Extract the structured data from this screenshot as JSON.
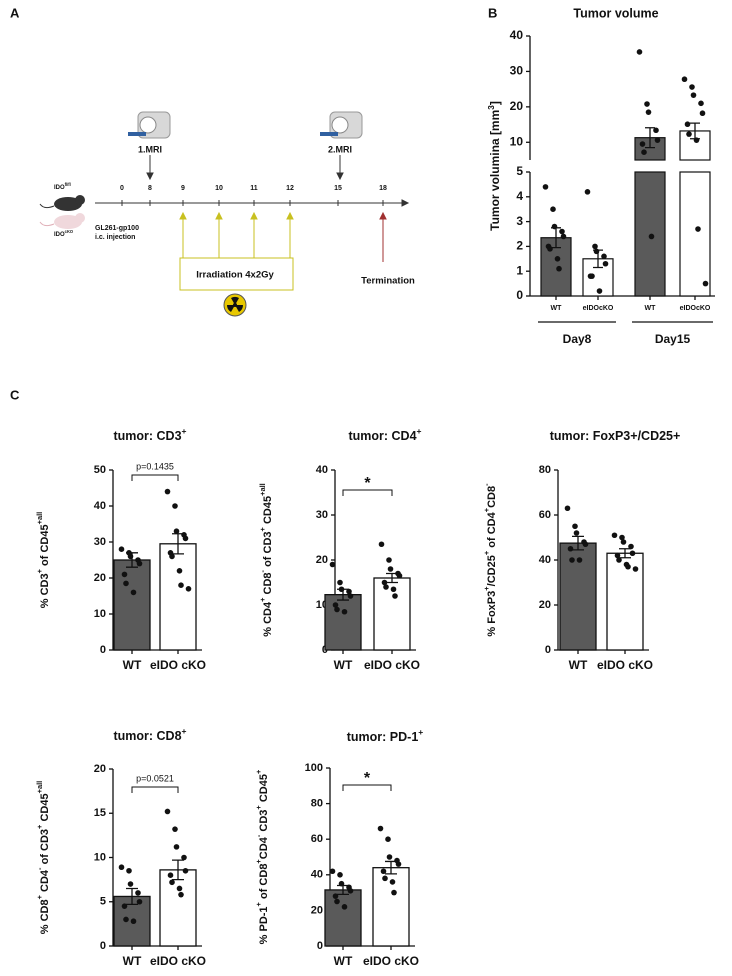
{
  "panel_labels": [
    "A",
    "B",
    "C"
  ],
  "timeline": {
    "mouse_labels": [
      [
        {
          "text": "IDO"
        },
        {
          "text": "fl/fl",
          "sup": true
        }
      ],
      [
        {
          "text": "IDO"
        },
        {
          "text": "cKO",
          "sup": true
        }
      ]
    ],
    "days": [
      0,
      8,
      9,
      10,
      11,
      12,
      15,
      18
    ],
    "mri": [
      "1.MRI",
      "2.MRI"
    ],
    "injection": [
      "GL261-gp100",
      "i.c. injection"
    ],
    "irradiation": "Irradiation 4x2Gy",
    "termination": "Termination"
  },
  "chart_data": [
    {
      "type": "broken_bar",
      "title": "Tumor volume",
      "ylabel": [
        {
          "text": "Tumor volumina [mm"
        },
        {
          "text": "3",
          "sup": true
        },
        {
          "text": "]"
        }
      ],
      "categories": [
        "WT",
        "eIDOcKO",
        "WT",
        "eIDOcKO"
      ],
      "groups": [
        "Day8",
        "Day15"
      ],
      "colors": [
        "#5a5a5a",
        "#ffffff",
        "#5a5a5a",
        "#ffffff"
      ],
      "values": [
        2.35,
        1.5,
        11.3,
        13.2
      ],
      "errors": [
        0.4,
        0.35,
        2.8,
        2.2
      ],
      "points": [
        [
          4.4,
          3.5,
          2.8,
          2.6,
          2.4,
          2.0,
          1.9,
          1.5,
          1.1
        ],
        [
          4.2,
          2.0,
          1.8,
          1.6,
          1.3,
          0.8,
          0.8,
          0.2
        ],
        [
          35.5,
          20.8,
          18.5,
          13.4,
          10.6,
          9.5,
          7.2,
          2.4
        ],
        [
          27.8,
          25.6,
          23.3,
          21,
          18.2,
          15.1,
          12.3,
          10.6,
          2.7,
          0.5
        ]
      ],
      "ylim_lower": [
        0,
        5
      ],
      "yticks_lower": [
        0,
        1,
        2,
        3,
        4,
        5
      ],
      "ylim_upper": [
        5,
        40
      ],
      "yticks_upper": [
        10,
        20,
        30,
        40
      ]
    },
    {
      "type": "bar",
      "title": [
        {
          "text": "tumor: CD3"
        },
        {
          "text": "+",
          "sup": true
        }
      ],
      "ylabel": [
        {
          "text": "% CD3"
        },
        {
          "text": "+",
          "sup": true
        },
        {
          "text": " of CD45"
        },
        {
          "text": "+all",
          "sup": true
        }
      ],
      "categories": [
        "WT",
        "eIDO cKO"
      ],
      "colors": [
        "#5a5a5a",
        "#ffffff"
      ],
      "values": [
        25,
        29.5
      ],
      "errors": [
        2,
        2.8
      ],
      "points": [
        [
          28,
          27,
          26,
          25,
          24,
          21,
          18.5,
          16
        ],
        [
          44,
          40,
          33,
          32,
          31,
          27,
          26,
          22,
          18,
          17
        ]
      ],
      "ylim": [
        0,
        50
      ],
      "yticks": [
        0,
        10,
        20,
        30,
        40,
        50
      ],
      "annotation": "p=0.1435"
    },
    {
      "type": "bar",
      "title": [
        {
          "text": "tumor: CD4"
        },
        {
          "text": "+",
          "sup": true
        }
      ],
      "ylabel": [
        {
          "text": "% CD4"
        },
        {
          "text": "+",
          "sup": true
        },
        {
          "text": " CD8"
        },
        {
          "text": "-",
          "sup": true
        },
        {
          "text": " of CD3"
        },
        {
          "text": "+",
          "sup": true
        },
        {
          "text": " CD45"
        },
        {
          "text": "+all",
          "sup": true
        }
      ],
      "categories": [
        "WT",
        "eIDO cKO"
      ],
      "colors": [
        "#5a5a5a",
        "#ffffff"
      ],
      "values": [
        12.3,
        16
      ],
      "errors": [
        1.2,
        1
      ],
      "points": [
        [
          19,
          15,
          13.5,
          13,
          12,
          10,
          9,
          8.5
        ],
        [
          23.5,
          20,
          18,
          17,
          16.5,
          15,
          14,
          13.5,
          12
        ]
      ],
      "ylim": [
        0,
        40
      ],
      "yticks": [
        0,
        10,
        20,
        30,
        40
      ],
      "annotation": "*"
    },
    {
      "type": "bar",
      "title": [
        {
          "text": "tumor: FoxP3+/CD25+"
        }
      ],
      "ylabel": [
        {
          "text": "% FoxP3"
        },
        {
          "text": "+",
          "sup": true
        },
        {
          "text": "/CD25"
        },
        {
          "text": "+",
          "sup": true
        },
        {
          "text": " of CD4"
        },
        {
          "text": "+",
          "sup": true
        },
        {
          "text": "CD8"
        },
        {
          "text": "-",
          "sup": true
        }
      ],
      "categories": [
        "WT",
        "eIDO cKO"
      ],
      "colors": [
        "#5a5a5a",
        "#ffffff"
      ],
      "values": [
        47.5,
        43
      ],
      "errors": [
        3,
        2
      ],
      "points": [
        [
          63,
          55,
          52,
          48,
          47,
          45,
          40,
          40
        ],
        [
          51,
          50,
          48,
          46,
          43,
          42,
          40,
          38,
          37,
          36
        ]
      ],
      "ylim": [
        0,
        80
      ],
      "yticks": [
        0,
        20,
        40,
        60,
        80
      ]
    },
    {
      "type": "bar",
      "title": [
        {
          "text": "tumor: CD8"
        },
        {
          "text": "+",
          "sup": true
        }
      ],
      "ylabel": [
        {
          "text": "% CD8"
        },
        {
          "text": "+",
          "sup": true
        },
        {
          "text": " CD4"
        },
        {
          "text": "-",
          "sup": true
        },
        {
          "text": " of CD3"
        },
        {
          "text": "+",
          "sup": true
        },
        {
          "text": " CD45"
        },
        {
          "text": "+all",
          "sup": true
        }
      ],
      "categories": [
        "WT",
        "eIDO cKO"
      ],
      "colors": [
        "#5a5a5a",
        "#ffffff"
      ],
      "values": [
        5.6,
        8.6
      ],
      "errors": [
        0.9,
        1.1
      ],
      "points": [
        [
          8.9,
          8.5,
          7,
          6,
          5,
          4.5,
          3,
          2.8
        ],
        [
          15.2,
          13.2,
          11.2,
          10,
          8.5,
          8,
          7.2,
          6.5,
          5.8
        ]
      ],
      "ylim": [
        0,
        20
      ],
      "yticks": [
        0,
        5,
        10,
        15,
        20
      ],
      "annotation": "p=0.0521"
    },
    {
      "type": "bar",
      "title": [
        {
          "text": "tumor: PD-1"
        },
        {
          "text": "+",
          "sup": true
        }
      ],
      "ylabel": [
        {
          "text": "% PD-1"
        },
        {
          "text": "+",
          "sup": true
        },
        {
          "text": " of CD8"
        },
        {
          "text": "+",
          "sup": true
        },
        {
          "text": "CD4"
        },
        {
          "text": "-",
          "sup": true
        },
        {
          "text": "  CD3"
        },
        {
          "text": "+",
          "sup": true
        },
        {
          "text": " CD45"
        },
        {
          "text": "+",
          "sup": true
        }
      ],
      "categories": [
        "WT",
        "eIDO cKO"
      ],
      "colors": [
        "#5a5a5a",
        "#ffffff"
      ],
      "values": [
        31.5,
        44
      ],
      "errors": [
        2.5,
        3.5
      ],
      "points": [
        [
          42,
          40,
          35,
          33,
          31,
          28,
          25,
          22
        ],
        [
          66,
          60,
          50,
          48,
          46,
          42,
          38,
          36,
          30
        ]
      ],
      "ylim": [
        0,
        100
      ],
      "yticks": [
        0,
        20,
        40,
        60,
        80,
        100
      ],
      "annotation": "*"
    }
  ]
}
